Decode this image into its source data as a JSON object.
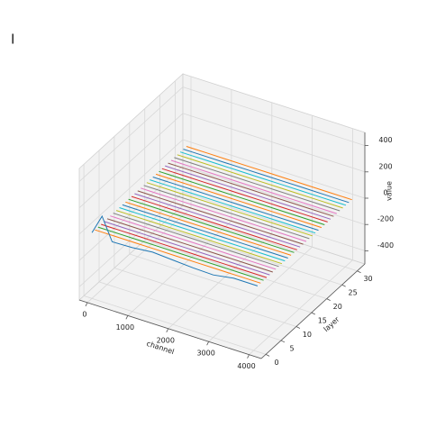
{
  "chart_data": {
    "type": "line3d",
    "corner_label": "I",
    "xlabel": "channel",
    "ylabel": "layer",
    "zlabel": "value",
    "xlim": [
      -200,
      4300
    ],
    "ylim": [
      -1.5,
      32.5
    ],
    "zlim": [
      -500,
      500
    ],
    "xticks": [
      0,
      1000,
      2000,
      3000,
      4000
    ],
    "yticks": [
      0,
      5,
      10,
      15,
      20,
      25,
      30
    ],
    "zticks": [
      -400,
      -200,
      0,
      200,
      400
    ],
    "grid": true,
    "x": [
      0,
      250,
      500,
      1000,
      1500,
      2000,
      2500,
      3000,
      3500,
      4095
    ],
    "series": [
      {
        "layer": 0,
        "color": "#1f77b4",
        "values": [
          0,
          150,
          -20,
          -15,
          0,
          -10,
          -20,
          -25,
          0,
          0
        ]
      },
      {
        "layer": 1,
        "color": "#ff7f0e",
        "values": [
          0,
          0,
          0,
          0,
          0,
          0,
          0,
          0,
          0,
          0
        ]
      },
      {
        "layer": 2,
        "color": "#2ca02c",
        "values": [
          0,
          0,
          0,
          0,
          0,
          0,
          0,
          0,
          0,
          0
        ]
      },
      {
        "layer": 3,
        "color": "#d62728",
        "values": [
          0,
          0,
          0,
          0,
          0,
          0,
          0,
          0,
          0,
          0
        ]
      },
      {
        "layer": 4,
        "color": "#9467bd",
        "values": [
          0,
          0,
          0,
          0,
          0,
          0,
          0,
          0,
          0,
          0
        ]
      },
      {
        "layer": 5,
        "color": "#8c564b",
        "values": [
          0,
          0,
          0,
          0,
          0,
          0,
          0,
          0,
          0,
          0
        ]
      },
      {
        "layer": 6,
        "color": "#e377c2",
        "values": [
          0,
          0,
          0,
          0,
          0,
          0,
          0,
          0,
          0,
          0
        ]
      },
      {
        "layer": 7,
        "color": "#7f7f7f",
        "values": [
          0,
          0,
          0,
          0,
          0,
          0,
          0,
          0,
          0,
          0
        ]
      },
      {
        "layer": 8,
        "color": "#bcbd22",
        "values": [
          0,
          0,
          0,
          0,
          0,
          0,
          0,
          0,
          0,
          0
        ]
      },
      {
        "layer": 9,
        "color": "#17becf",
        "values": [
          0,
          0,
          0,
          0,
          0,
          0,
          0,
          0,
          0,
          0
        ]
      },
      {
        "layer": 10,
        "color": "#1f77b4",
        "values": [
          0,
          0,
          0,
          0,
          0,
          0,
          0,
          0,
          0,
          0
        ]
      },
      {
        "layer": 11,
        "color": "#ff7f0e",
        "values": [
          0,
          0,
          0,
          0,
          0,
          0,
          0,
          0,
          0,
          0
        ]
      },
      {
        "layer": 12,
        "color": "#2ca02c",
        "values": [
          0,
          0,
          0,
          0,
          0,
          0,
          0,
          0,
          0,
          0
        ]
      },
      {
        "layer": 13,
        "color": "#d62728",
        "values": [
          0,
          0,
          0,
          0,
          0,
          0,
          0,
          0,
          0,
          0
        ]
      },
      {
        "layer": 14,
        "color": "#9467bd",
        "values": [
          0,
          0,
          0,
          0,
          0,
          0,
          0,
          0,
          0,
          0
        ]
      },
      {
        "layer": 15,
        "color": "#8c564b",
        "values": [
          0,
          0,
          0,
          0,
          0,
          0,
          0,
          0,
          0,
          0
        ]
      },
      {
        "layer": 16,
        "color": "#e377c2",
        "values": [
          0,
          0,
          0,
          0,
          0,
          0,
          0,
          0,
          0,
          0
        ]
      },
      {
        "layer": 17,
        "color": "#7f7f7f",
        "values": [
          0,
          0,
          0,
          0,
          0,
          0,
          0,
          0,
          0,
          0
        ]
      },
      {
        "layer": 18,
        "color": "#bcbd22",
        "values": [
          0,
          0,
          0,
          0,
          0,
          0,
          0,
          0,
          0,
          0
        ]
      },
      {
        "layer": 19,
        "color": "#17becf",
        "values": [
          0,
          0,
          0,
          0,
          0,
          0,
          0,
          0,
          0,
          0
        ]
      },
      {
        "layer": 20,
        "color": "#1f77b4",
        "values": [
          0,
          0,
          0,
          0,
          0,
          0,
          0,
          0,
          0,
          0
        ]
      },
      {
        "layer": 21,
        "color": "#ff7f0e",
        "values": [
          0,
          0,
          0,
          0,
          0,
          0,
          0,
          0,
          0,
          0
        ]
      },
      {
        "layer": 22,
        "color": "#2ca02c",
        "values": [
          0,
          0,
          0,
          0,
          0,
          0,
          0,
          0,
          0,
          0
        ]
      },
      {
        "layer": 23,
        "color": "#d62728",
        "values": [
          0,
          0,
          0,
          0,
          0,
          0,
          0,
          0,
          0,
          0
        ]
      },
      {
        "layer": 24,
        "color": "#9467bd",
        "values": [
          0,
          0,
          0,
          0,
          0,
          0,
          0,
          0,
          0,
          0
        ]
      },
      {
        "layer": 25,
        "color": "#8c564b",
        "values": [
          0,
          0,
          0,
          0,
          0,
          0,
          0,
          0,
          0,
          0
        ]
      },
      {
        "layer": 26,
        "color": "#e377c2",
        "values": [
          0,
          0,
          0,
          0,
          0,
          0,
          0,
          0,
          0,
          0
        ]
      },
      {
        "layer": 27,
        "color": "#7f7f7f",
        "values": [
          0,
          0,
          0,
          0,
          0,
          0,
          0,
          0,
          0,
          0
        ]
      },
      {
        "layer": 28,
        "color": "#bcbd22",
        "values": [
          0,
          0,
          0,
          0,
          0,
          0,
          0,
          0,
          0,
          0
        ]
      },
      {
        "layer": 29,
        "color": "#17becf",
        "values": [
          0,
          0,
          0,
          0,
          0,
          0,
          0,
          0,
          0,
          0
        ]
      },
      {
        "layer": 30,
        "color": "#1f77b4",
        "values": [
          0,
          0,
          0,
          0,
          0,
          0,
          0,
          0,
          0,
          0
        ]
      },
      {
        "layer": 31,
        "color": "#ff7f0e",
        "values": [
          0,
          0,
          0,
          0,
          0,
          0,
          0,
          0,
          0,
          0
        ]
      }
    ]
  }
}
